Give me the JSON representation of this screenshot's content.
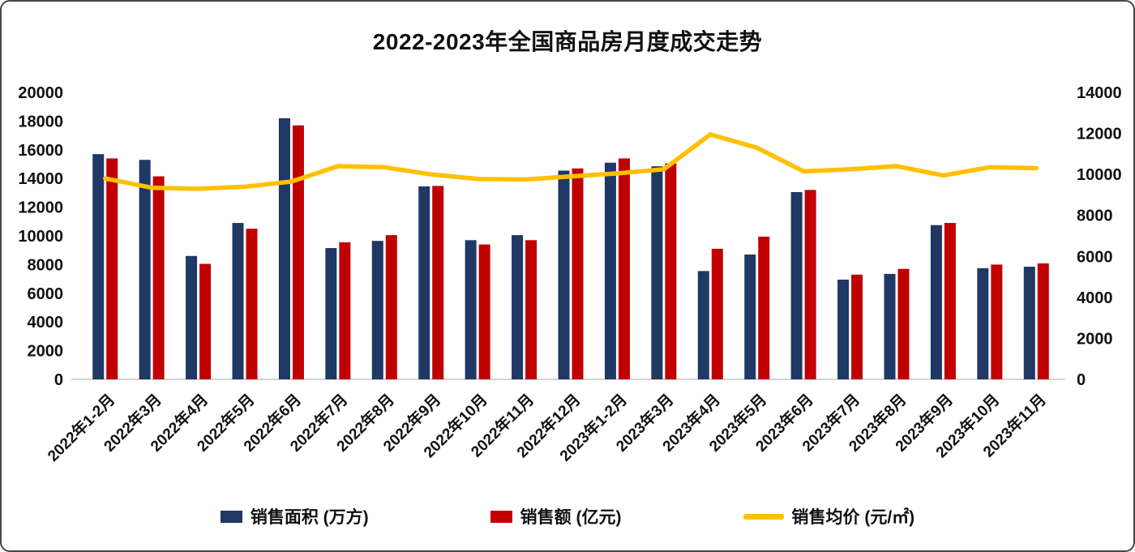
{
  "chart_data": {
    "type": "bar+line",
    "title": "2022-2023年全国商品房月度成交走势",
    "categories": [
      "2022年1-2月",
      "2022年3月",
      "2022年4月",
      "2022年5月",
      "2022年6月",
      "2022年7月",
      "2022年8月",
      "2022年9月",
      "2022年10月",
      "2022年11月",
      "2022年12月",
      "2023年1-2月",
      "2023年3月",
      "2023年4月",
      "2023年5月",
      "2023年6月",
      "2023年7月",
      "2023年8月",
      "2023年9月",
      "2023年10月",
      "2023年11月"
    ],
    "series": [
      {
        "name": "销售面积 (万方)",
        "type": "bar",
        "axis": "left",
        "color": "#1F3864",
        "values": [
          15700,
          15300,
          8600,
          10900,
          18200,
          9150,
          9650,
          13450,
          9700,
          10050,
          14550,
          15100,
          14850,
          7550,
          8700,
          13050,
          6950,
          7350,
          10750,
          7750,
          7850
        ]
      },
      {
        "name": "销售额 (亿元)",
        "type": "bar",
        "axis": "left",
        "color": "#C00000",
        "values": [
          15400,
          14150,
          8050,
          10500,
          17700,
          9550,
          10050,
          13480,
          9400,
          9700,
          14700,
          15400,
          15050,
          9100,
          9950,
          13200,
          7300,
          7700,
          10900,
          8000,
          8080
        ]
      },
      {
        "name": "销售均价 (元/㎡)",
        "type": "line",
        "axis": "right",
        "color": "#FFC000",
        "values": [
          9800,
          9350,
          9300,
          9400,
          9650,
          10400,
          10350,
          10000,
          9780,
          9750,
          9900,
          10050,
          10250,
          11950,
          11300,
          10150,
          10250,
          10400,
          9950,
          10350,
          10300
        ]
      }
    ],
    "left_axis": {
      "min": 0,
      "max": 20000,
      "step": 2000,
      "ticks": [
        0,
        2000,
        4000,
        6000,
        8000,
        10000,
        12000,
        14000,
        16000,
        18000,
        20000
      ]
    },
    "right_axis": {
      "min": 0,
      "max": 14000,
      "step": 2000,
      "ticks": [
        0,
        2000,
        4000,
        6000,
        8000,
        10000,
        12000,
        14000
      ]
    },
    "grid": false,
    "legend_position": "bottom",
    "x_label_rotation_deg": -45,
    "colors": {
      "bar_area": "#1F3864",
      "bar_amount": "#C00000",
      "line_price": "#FFC000",
      "axis_line": "#c6c6c6",
      "text": "#111111",
      "border": "#474747"
    }
  }
}
